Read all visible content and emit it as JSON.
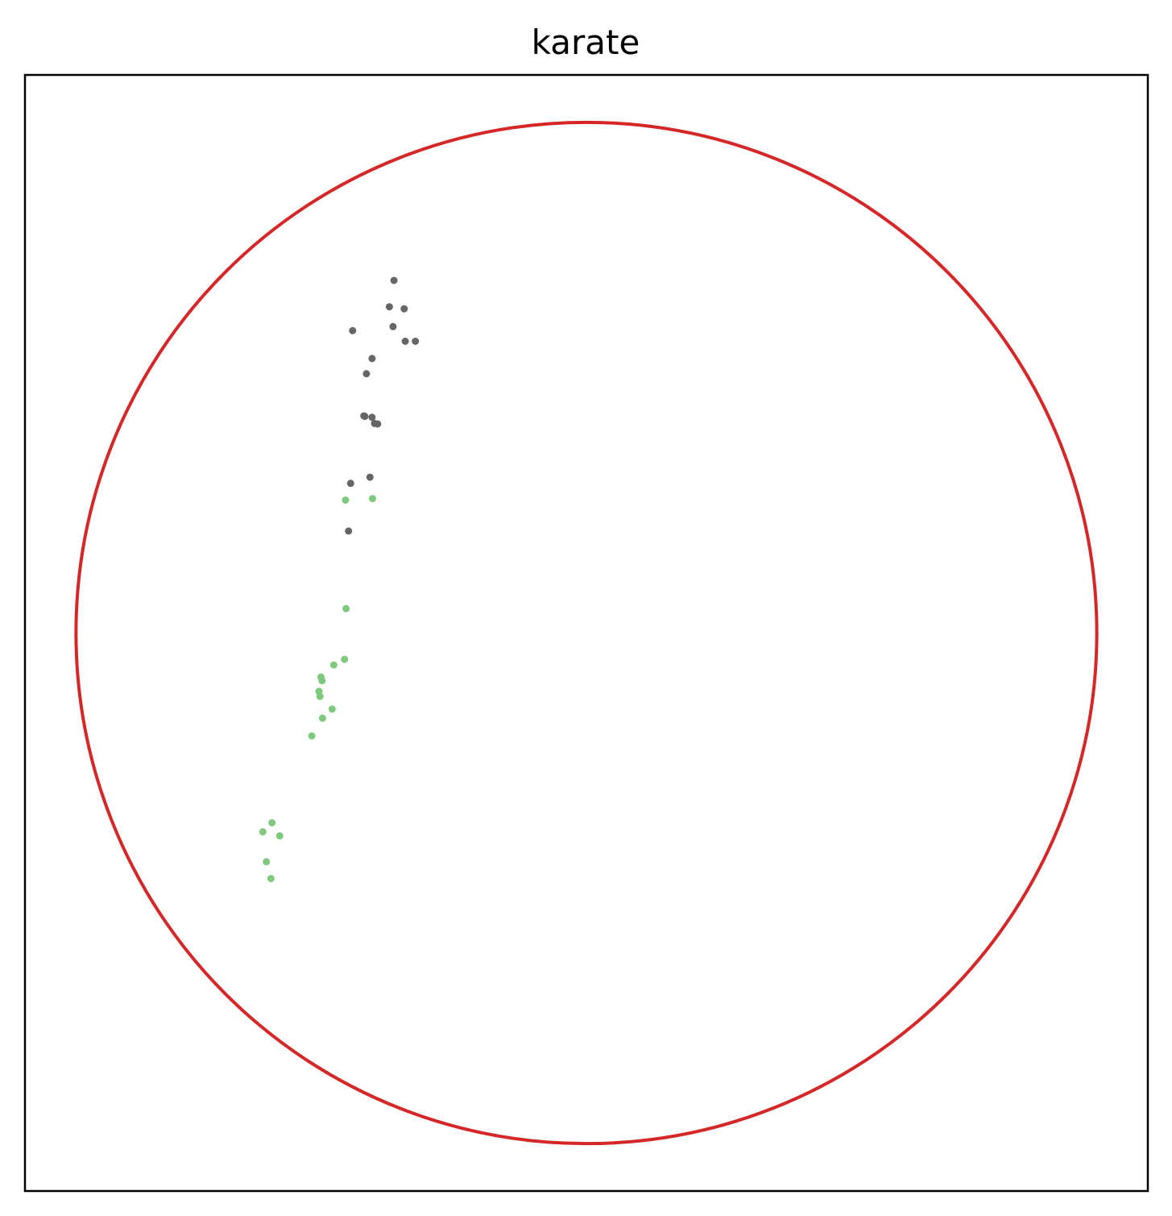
{
  "chart_data": {
    "type": "scatter",
    "title": "karate",
    "xlabel": "",
    "ylabel": "",
    "xlim": [
      -1.1,
      1.1
    ],
    "ylim": [
      -1.1,
      1.1
    ],
    "grid": false,
    "axis_ticks": false,
    "boundary_circle": {
      "center": [
        0,
        0
      ],
      "radius": 1,
      "color": "#d62728"
    },
    "series": [
      {
        "color": "#666666",
        "points": [
          [
            -0.377,
            0.695
          ],
          [
            -0.386,
            0.643
          ],
          [
            -0.357,
            0.639
          ],
          [
            -0.379,
            0.604
          ],
          [
            -0.458,
            0.596
          ],
          [
            -0.355,
            0.575
          ],
          [
            -0.335,
            0.575
          ],
          [
            -0.42,
            0.541
          ],
          [
            -0.431,
            0.511
          ],
          [
            -0.436,
            0.428
          ],
          [
            -0.434,
            0.427
          ],
          [
            -0.42,
            0.425
          ],
          [
            -0.415,
            0.413
          ],
          [
            -0.409,
            0.412
          ],
          [
            -0.424,
            0.307
          ],
          [
            -0.462,
            0.295
          ],
          [
            -0.466,
            0.201
          ]
        ]
      },
      {
        "color": "#7fc97f",
        "points": [
          [
            -0.472,
            0.262
          ],
          [
            -0.419,
            0.265
          ],
          [
            -0.471,
            0.048
          ],
          [
            -0.474,
            -0.052
          ],
          [
            -0.495,
            -0.063
          ],
          [
            -0.52,
            -0.087
          ],
          [
            -0.518,
            -0.094
          ],
          [
            -0.524,
            -0.115
          ],
          [
            -0.522,
            -0.125
          ],
          [
            -0.498,
            -0.15
          ],
          [
            -0.517,
            -0.168
          ],
          [
            -0.538,
            -0.203
          ],
          [
            -0.616,
            -0.374
          ],
          [
            -0.601,
            -0.4
          ],
          [
            -0.634,
            -0.392
          ],
          [
            -0.627,
            -0.451
          ],
          [
            -0.618,
            -0.484
          ]
        ]
      }
    ]
  }
}
